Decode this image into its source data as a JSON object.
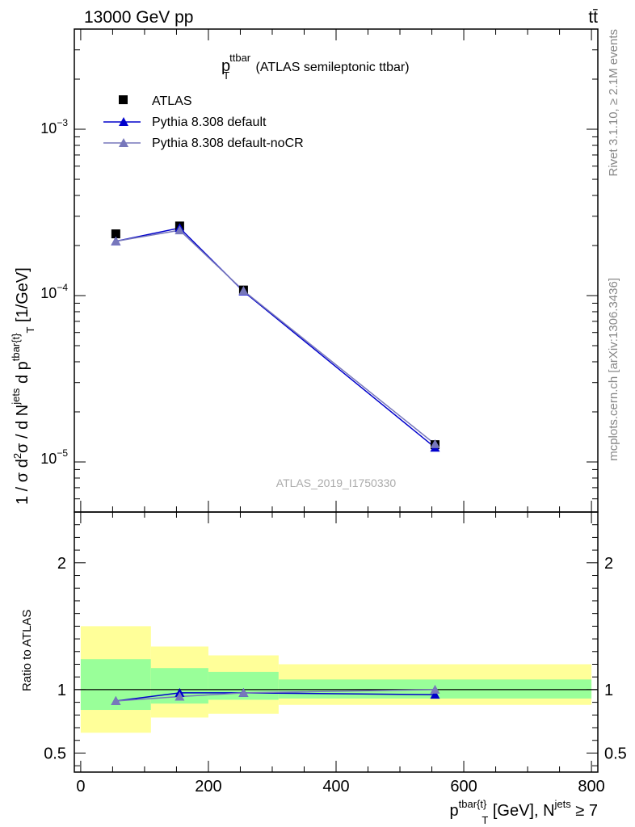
{
  "header": {
    "energy_label": "13000 GeV pp",
    "process_label": "tt̄"
  },
  "side_labels": {
    "rivet": "Rivet 3.1.10, ≥ 2.1M events",
    "mcplots": "mcplots.cern.ch [arXiv:1306.3436]"
  },
  "chart_data": [
    {
      "type": "line",
      "title": "p_T^ttbar (ATLAS semileptonic ttbar)",
      "title_parts": {
        "main": "p",
        "sup": "ttbar",
        "sub": "T",
        "rest": " (ATLAS semileptonic ttbar)"
      },
      "ylabel": "1 / σ d²σ / d N^jets d p^tbar{t}_T [1/GeV]",
      "yscale": "log",
      "ylim": [
        5e-06,
        0.004
      ],
      "xlim": [
        -10,
        810
      ],
      "y_tick_labels": [
        "10^-5",
        "10^-4",
        "10^-3"
      ],
      "legend_position": "top-left",
      "watermark": "ATLAS_2019_I1750330",
      "x": [
        55,
        155,
        255,
        555
      ],
      "series": [
        {
          "name": "ATLAS",
          "marker": "square",
          "color": "#000000",
          "values": [
            0.000235,
            0.000262,
            0.000108,
            1.27e-05
          ]
        },
        {
          "name": "Pythia 8.308 default",
          "marker": "triangle",
          "color": "#0000cc",
          "values": [
            0.000212,
            0.000255,
            0.000106,
            1.22e-05
          ]
        },
        {
          "name": "Pythia 8.308 default-noCR",
          "marker": "triangle",
          "color": "#7777bb",
          "values": [
            0.000212,
            0.000247,
            0.000107,
            1.28e-05
          ]
        }
      ]
    },
    {
      "type": "line",
      "ylabel": "Ratio to ATLAS",
      "xlabel": "p^tbar{t}_T [GeV], N^jets ≥ 7",
      "xlim": [
        -10,
        810
      ],
      "ylim": [
        0.35,
        2.4
      ],
      "x_ticks": [
        0,
        200,
        400,
        600,
        800
      ],
      "y_ticks": [
        0.5,
        1,
        2
      ],
      "bins": [
        [
          0,
          110
        ],
        [
          110,
          200
        ],
        [
          200,
          310
        ],
        [
          310,
          800
        ]
      ],
      "band_outer": {
        "color": "#ffff99",
        "low": [
          0.66,
          0.78,
          0.81,
          0.88
        ],
        "high": [
          1.5,
          1.34,
          1.27,
          1.2
        ]
      },
      "band_inner": {
        "color": "#99ff99",
        "low": [
          0.84,
          0.89,
          0.92,
          0.93
        ],
        "high": [
          1.24,
          1.17,
          1.14,
          1.08
        ]
      },
      "x": [
        55,
        155,
        255,
        555
      ],
      "series": [
        {
          "name": "Pythia 8.308 default",
          "color": "#0000cc",
          "values": [
            0.91,
            0.975,
            0.975,
            0.96
          ]
        },
        {
          "name": "Pythia 8.308 default-noCR",
          "color": "#7777bb",
          "values": [
            0.91,
            0.945,
            0.975,
            1.0
          ]
        }
      ]
    }
  ]
}
